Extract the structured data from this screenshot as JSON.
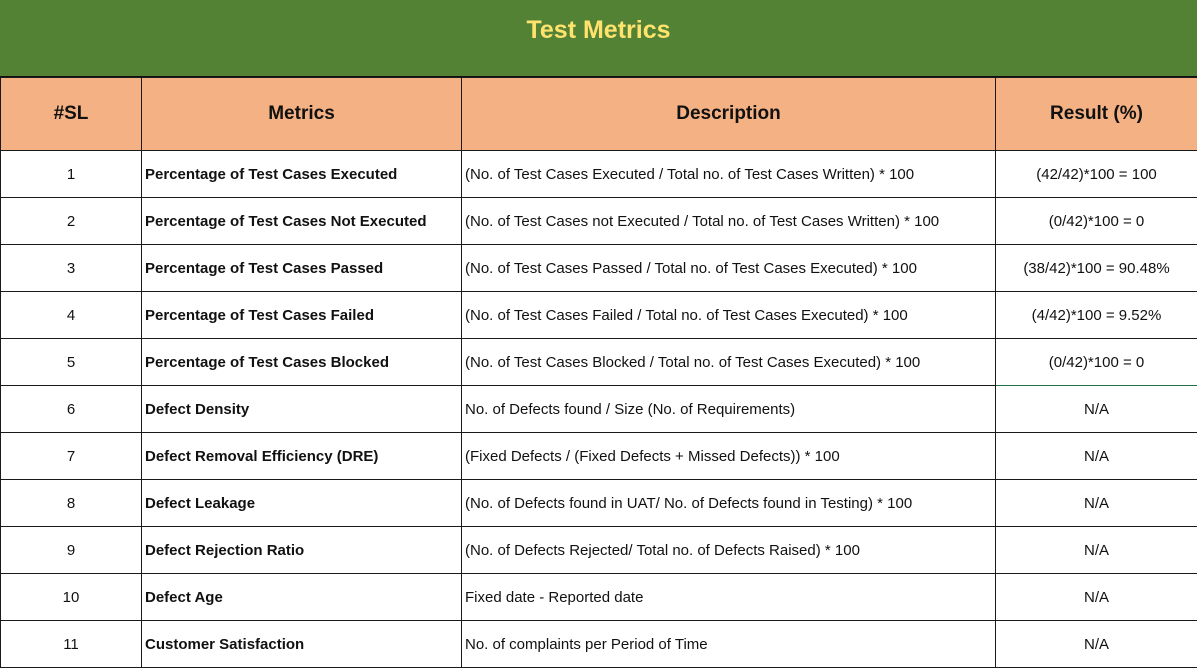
{
  "title": "Test Metrics",
  "headers": {
    "sl": "#SL",
    "metrics": "Metrics",
    "description": "Description",
    "result": "Result (%)"
  },
  "rows": [
    {
      "sl": "1",
      "metric": "Percentage of Test Cases Executed",
      "description": "(No. of Test Cases Executed / Total no. of Test Cases Written) * 100",
      "result": "(42/42)*100 = 100"
    },
    {
      "sl": "2",
      "metric": "Percentage of Test Cases Not Executed",
      "description": "(No. of Test Cases not Executed / Total no. of Test Cases Written) * 100",
      "result": "(0/42)*100 = 0"
    },
    {
      "sl": "3",
      "metric": "Percentage of Test Cases Passed",
      "description": "(No. of Test Cases Passed / Total no. of Test Cases Executed) * 100",
      "result": "(38/42)*100 = 90.48%"
    },
    {
      "sl": "4",
      "metric": "Percentage of Test Cases Failed",
      "description": "(No. of Test Cases Failed / Total no. of Test Cases Executed) * 100",
      "result": "(4/42)*100 = 9.52%"
    },
    {
      "sl": "5",
      "metric": "Percentage of Test Cases Blocked",
      "description": "(No. of Test Cases Blocked / Total no. of Test Cases Executed) * 100",
      "result": "(0/42)*100 = 0"
    },
    {
      "sl": "6",
      "metric": "Defect Density",
      "description": "No. of Defects found / Size (No. of Requirements)",
      "result": "N/A"
    },
    {
      "sl": "7",
      "metric": "Defect Removal Efficiency (DRE)",
      "description": "(Fixed Defects / (Fixed Defects + Missed Defects)) * 100",
      "result": "N/A"
    },
    {
      "sl": "8",
      "metric": "Defect Leakage",
      "description": "(No. of Defects found in UAT/ No. of Defects found in Testing) * 100",
      "result": "N/A"
    },
    {
      "sl": "9",
      "metric": "Defect Rejection Ratio",
      "description": "(No. of Defects Rejected/ Total no. of Defects Raised) * 100",
      "result": "N/A"
    },
    {
      "sl": "10",
      "metric": "Defect Age",
      "description": "Fixed date - Reported date",
      "result": "N/A"
    },
    {
      "sl": "11",
      "metric": "Customer Satisfaction",
      "description": "No. of complaints per Period of Time",
      "result": "N/A"
    }
  ],
  "colors": {
    "title_bg": "#548235",
    "title_text": "#ffe36d",
    "header_bg": "#f4b183"
  }
}
